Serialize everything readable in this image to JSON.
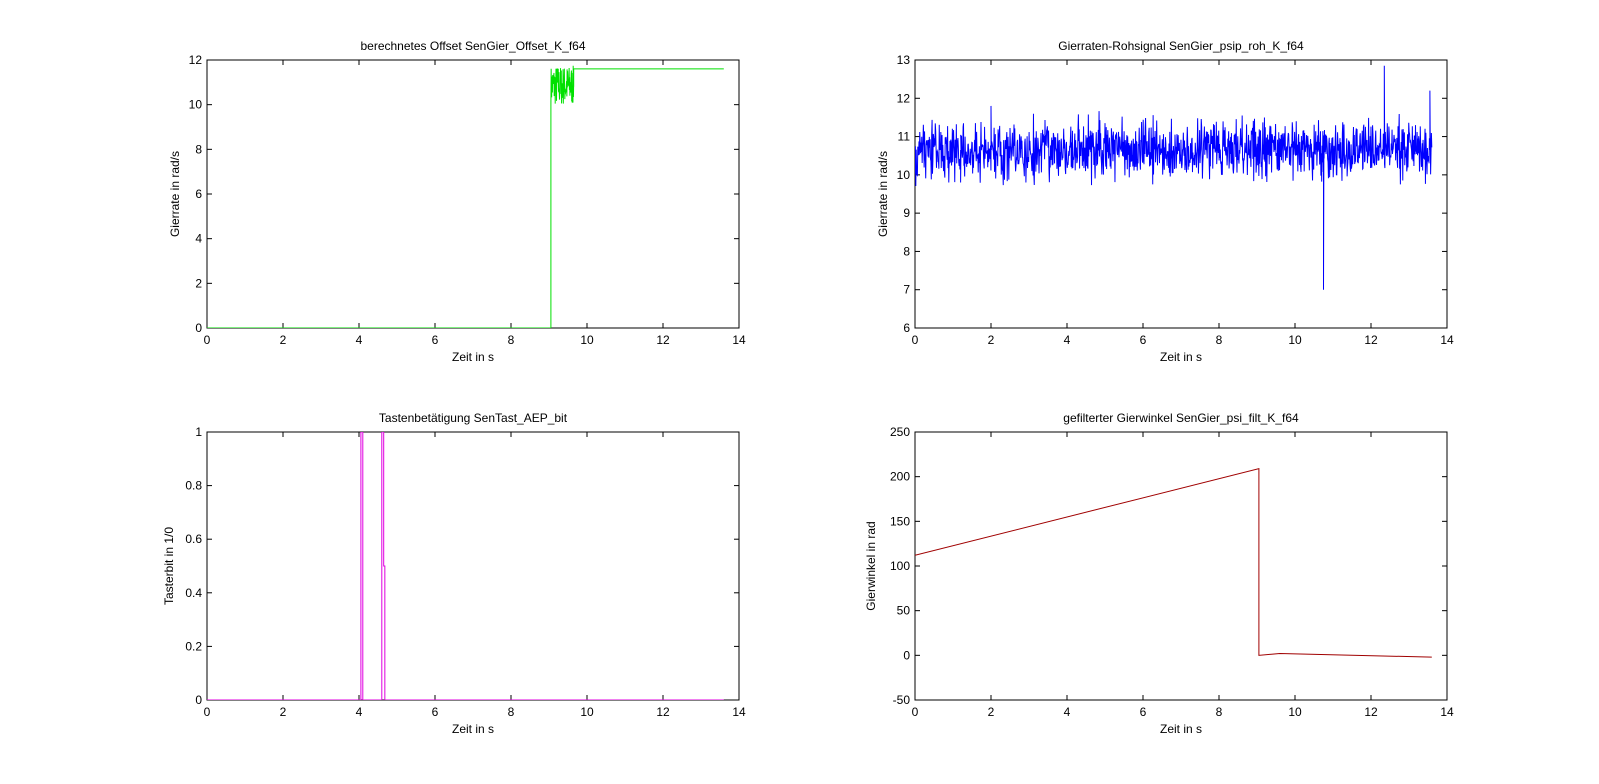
{
  "chart_data": [
    {
      "type": "line",
      "title": "berechnetes Offset SenGier_Offset_K_f64",
      "xlabel": "Zeit in s",
      "ylabel": "Gierrate in rad/s",
      "xlim": [
        0,
        14
      ],
      "ylim": [
        0,
        12
      ],
      "xticks": [
        "0",
        "2",
        "4",
        "6",
        "8",
        "10",
        "12",
        "14"
      ],
      "yticks": [
        "0",
        "2",
        "4",
        "6",
        "8",
        "10",
        "12"
      ],
      "grid": false,
      "series": [
        {
          "color": "#00e000",
          "noise": {
            "x_start": 9.05,
            "x_end": 9.65,
            "mean": 10.85,
            "amplitude": 0.9,
            "samples": 90,
            "seed": 7
          },
          "points": [
            [
              0,
              0
            ],
            [
              9.05,
              0
            ],
            [
              9.05,
              10.2
            ],
            [
              9.65,
              10.8
            ],
            [
              9.65,
              11.6
            ],
            [
              13.6,
              11.6
            ]
          ]
        }
      ]
    },
    {
      "type": "line",
      "title": "Gierraten-Rohsignal SenGier_psip_roh_K_f64",
      "xlabel": "Zeit in s",
      "ylabel": "Gierrate in rad/s",
      "xlim": [
        0,
        14
      ],
      "ylim": [
        6,
        13
      ],
      "xticks": [
        "0",
        "2",
        "4",
        "6",
        "8",
        "10",
        "12",
        "14"
      ],
      "yticks": [
        "6",
        "7",
        "8",
        "9",
        "10",
        "11",
        "12",
        "13"
      ],
      "grid": false,
      "series": [
        {
          "color": "#0000ff",
          "noise": {
            "x_start": 0,
            "x_end": 13.6,
            "mean": 10.65,
            "amplitude": 1.1,
            "samples": 1300,
            "seed": 3
          },
          "spikes": [
            [
              10.75,
              7.0
            ],
            [
              12.35,
              12.85
            ],
            [
              13.55,
              12.2
            ],
            [
              1.2,
              9.8
            ],
            [
              2.0,
              11.8
            ]
          ]
        }
      ]
    },
    {
      "type": "line",
      "title": "Tastenbetätigung SenTast_AEP_bit",
      "xlabel": "Zeit in s",
      "ylabel": "Tasterbit in 1/0",
      "xlim": [
        0,
        14
      ],
      "ylim": [
        0,
        1
      ],
      "xticks": [
        "0",
        "2",
        "4",
        "6",
        "8",
        "10",
        "12",
        "14"
      ],
      "yticks": [
        "0",
        "0.2",
        "0.4",
        "0.6",
        "0.8",
        "1"
      ],
      "grid": false,
      "series": [
        {
          "color": "#e000e0",
          "points": [
            [
              0,
              0
            ],
            [
              4.05,
              0
            ],
            [
              4.05,
              1
            ],
            [
              4.1,
              1
            ],
            [
              4.1,
              0
            ],
            [
              4.6,
              0
            ],
            [
              4.6,
              1
            ],
            [
              4.65,
              1
            ],
            [
              4.65,
              0.5
            ],
            [
              4.68,
              0.5
            ],
            [
              4.68,
              0
            ],
            [
              13.6,
              0
            ]
          ]
        }
      ]
    },
    {
      "type": "line",
      "title": "gefilterter Gierwinkel SenGier_psi_filt_K_f64",
      "xlabel": "Zeit in s",
      "ylabel": "Gierwinkel in rad",
      "xlim": [
        0,
        14
      ],
      "ylim": [
        -50,
        250
      ],
      "xticks": [
        "0",
        "2",
        "4",
        "6",
        "8",
        "10",
        "12",
        "14"
      ],
      "yticks": [
        "-50",
        "0",
        "50",
        "100",
        "150",
        "200",
        "250"
      ],
      "grid": false,
      "series": [
        {
          "color": "#a00000",
          "points": [
            [
              0,
              112
            ],
            [
              9.05,
              209
            ],
            [
              9.05,
              0
            ],
            [
              9.6,
              2
            ],
            [
              13.6,
              -2
            ]
          ]
        }
      ]
    }
  ]
}
